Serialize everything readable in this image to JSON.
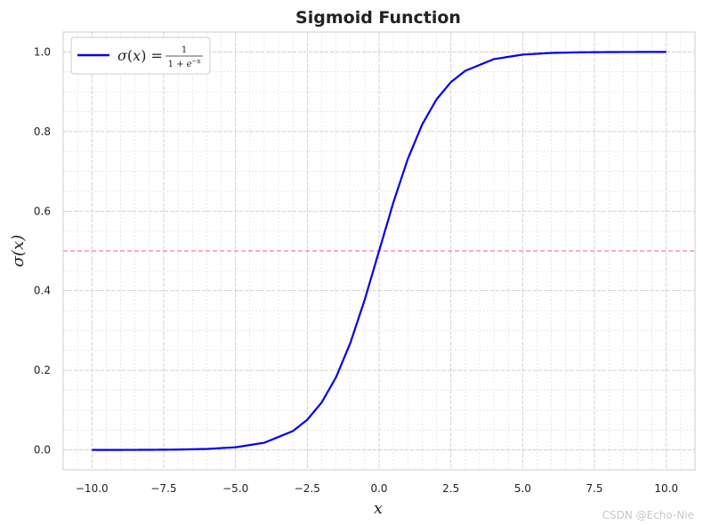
{
  "chart_data": {
    "type": "line",
    "title": "Sigmoid Function",
    "xlabel": "x",
    "ylabel": "σ(x)",
    "xlim": [
      -11,
      11
    ],
    "ylim": [
      -0.05,
      1.05
    ],
    "xticks": [
      -10.0,
      -7.5,
      -5.0,
      -2.5,
      0.0,
      2.5,
      5.0,
      7.5,
      10.0
    ],
    "xtick_labels": [
      "−10.0",
      "−7.5",
      "−5.0",
      "−2.5",
      "0.0",
      "2.5",
      "5.0",
      "7.5",
      "10.0"
    ],
    "yticks": [
      0.0,
      0.2,
      0.4,
      0.6,
      0.8,
      1.0
    ],
    "ytick_labels": [
      "0.0",
      "0.2",
      "0.4",
      "0.6",
      "0.8",
      "1.0"
    ],
    "grid": true,
    "minor_grid": true,
    "legend_position": "top-left",
    "series": [
      {
        "name": "σ(x) = 1 / (1 + e^(−x))",
        "color": "#0000ee",
        "x": [
          -10,
          -9,
          -8,
          -7,
          -6,
          -5,
          -4,
          -3,
          -2.5,
          -2,
          -1.5,
          -1,
          -0.5,
          0,
          0.5,
          1,
          1.5,
          2,
          2.5,
          3,
          4,
          5,
          6,
          7,
          8,
          9,
          10
        ],
        "y": [
          0.0,
          0.0001,
          0.0003,
          0.0009,
          0.0025,
          0.0067,
          0.018,
          0.0474,
          0.0759,
          0.1192,
          0.1824,
          0.2689,
          0.3775,
          0.5,
          0.6225,
          0.7311,
          0.8176,
          0.8808,
          0.9241,
          0.9526,
          0.982,
          0.9933,
          0.9975,
          0.9991,
          0.9997,
          0.9999,
          1.0
        ]
      }
    ],
    "reference_lines": [
      {
        "orientation": "horizontal",
        "y": 0.5,
        "color": "#e8647c",
        "style": "dashed"
      }
    ]
  },
  "watermark": "CSDN @Echo-Nie"
}
